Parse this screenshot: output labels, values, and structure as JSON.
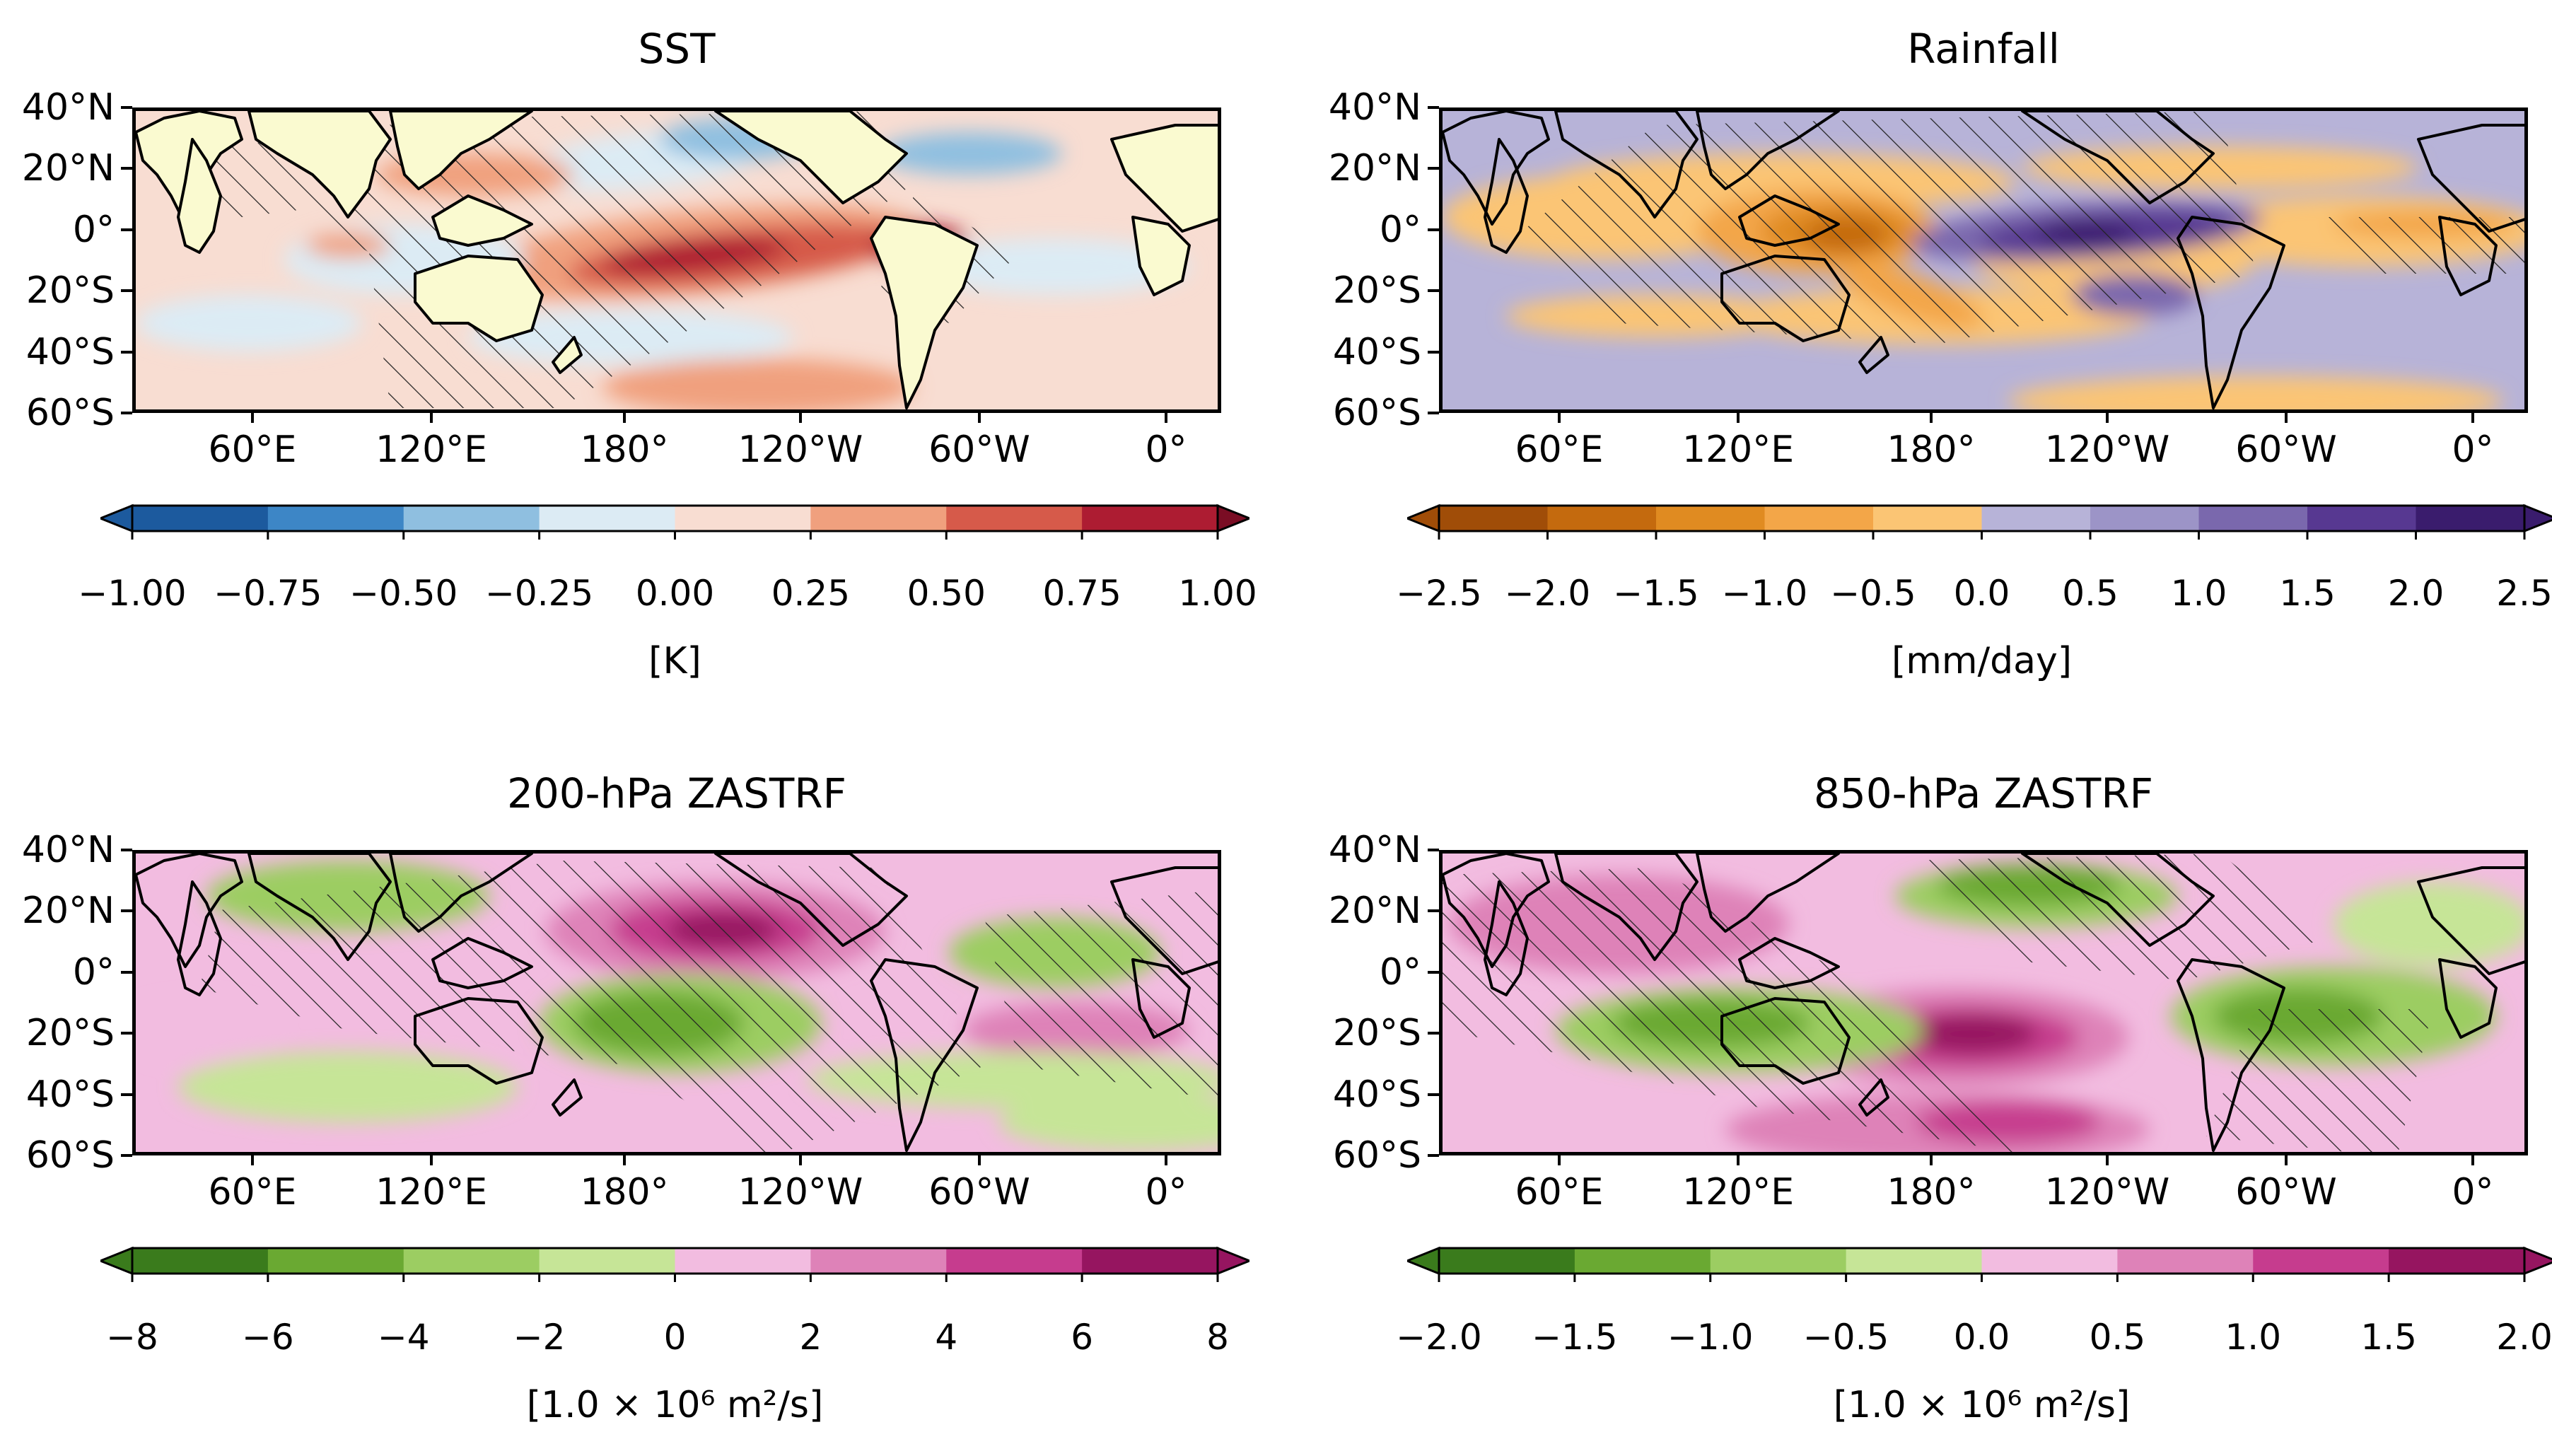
{
  "lat_labels": [
    "40°N",
    "20°N",
    "0°",
    "20°S",
    "40°S",
    "60°S"
  ],
  "lon_labels": [
    "60°E",
    "120°E",
    "180°",
    "120°W",
    "60°W",
    "0°"
  ],
  "panels": [
    {
      "title": "SST",
      "unit": "[K]",
      "ticks": [
        "−1.00",
        "−0.75",
        "−0.50",
        "−0.25",
        "0.00",
        "0.25",
        "0.50",
        "0.75",
        "1.00"
      ],
      "colors": [
        "#1c5a9e",
        "#3d86c6",
        "#8fbfe0",
        "#dcebf4",
        "#f8ddd2",
        "#f0a07e",
        "#d65a4a",
        "#ad1c32",
        "#7a0d24"
      ],
      "land_color": "#fafad0",
      "background": "#f8ddd2"
    },
    {
      "title": "Rainfall",
      "unit": "[mm/day]",
      "ticks": [
        "−2.5",
        "−2.0",
        "−1.5",
        "−1.0",
        "−0.5",
        "0.0",
        "0.5",
        "1.0",
        "1.5",
        "2.0",
        "2.5"
      ],
      "colors": [
        "#a04d08",
        "#c46a0e",
        "#e08b21",
        "#f3a648",
        "#fbc574",
        "#b7b3d8",
        "#9c94c7",
        "#7a68ad",
        "#573891",
        "#3a1c6d"
      ],
      "land_color": null,
      "background": "#b7b3d8"
    },
    {
      "title": "200-hPa ZASTRF",
      "unit": "[1.0 × 10⁶ m²/s]",
      "ticks": [
        "−8",
        "−6",
        "−4",
        "−2",
        "0",
        "2",
        "4",
        "6",
        "8"
      ],
      "colors": [
        "#3a7b1c",
        "#6aa932",
        "#9ccd62",
        "#c6e597",
        "#f2bce0",
        "#de82b8",
        "#c63c8e",
        "#961560"
      ],
      "land_color": null,
      "background": "#f2bce0"
    },
    {
      "title": "850-hPa ZASTRF",
      "unit": "[1.0 × 10⁶ m²/s]",
      "ticks": [
        "−2.0",
        "−1.5",
        "−1.0",
        "−0.5",
        "0.0",
        "0.5",
        "1.0",
        "1.5",
        "2.0"
      ],
      "colors": [
        "#3a7b1c",
        "#6aa932",
        "#9ccd62",
        "#c6e597",
        "#f2bce0",
        "#de82b8",
        "#c63c8e",
        "#961560"
      ],
      "land_color": null,
      "background": "#f2bce0"
    }
  ]
}
